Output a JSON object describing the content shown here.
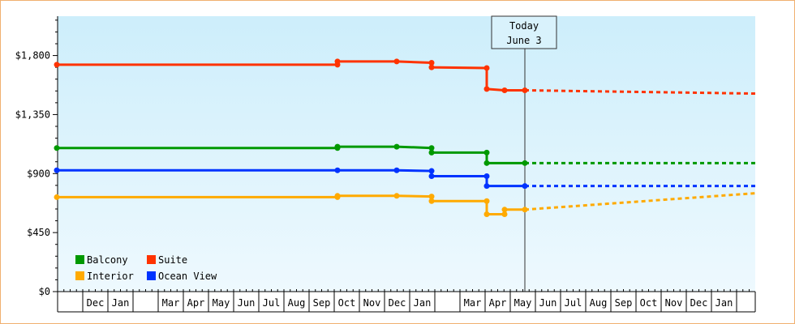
{
  "chart_data": {
    "type": "line",
    "title": "",
    "xlabel": "",
    "ylabel": "",
    "y_ticks": [
      "$0",
      "$450",
      "$900",
      "$1,350",
      "$1,800"
    ],
    "ylim": [
      0,
      2100
    ],
    "x_month_labels": [
      "",
      "Dec",
      "Jan",
      "",
      "Mar",
      "Apr",
      "May",
      "Jun",
      "Jul",
      "Aug",
      "Sep",
      "Oct",
      "Nov",
      "Dec",
      "Jan",
      "",
      "Mar",
      "Apr",
      "May",
      "Jun",
      "Jul",
      "Aug",
      "Sep",
      "Oct",
      "Nov",
      "Dec",
      "Jan",
      ""
    ],
    "today": {
      "line1": "Today",
      "line2": "June 3"
    },
    "legend": {
      "placement": "bottom-left"
    },
    "series": [
      {
        "name": "Suite",
        "color": "#ff3300",
        "points": [
          [
            "Nov",
            1730
          ],
          [
            "Oct",
            1730
          ],
          [
            "Oct",
            1755
          ],
          [
            "Dec",
            1755
          ],
          [
            "Jan",
            1745
          ],
          [
            "Jan",
            1710
          ],
          [
            "Apr",
            1705
          ],
          [
            "Apr",
            1545
          ],
          [
            "May",
            1535
          ],
          [
            "Jun 3",
            1535
          ]
        ],
        "forecast": [
          [
            "Jun 3",
            1535
          ],
          [
            "Jan",
            1510
          ]
        ]
      },
      {
        "name": "Balcony",
        "color": "#009900",
        "points": [
          [
            "Nov",
            1095
          ],
          [
            "Oct",
            1095
          ],
          [
            "Oct",
            1105
          ],
          [
            "Dec",
            1105
          ],
          [
            "Jan",
            1095
          ],
          [
            "Jan",
            1060
          ],
          [
            "Apr",
            1060
          ],
          [
            "Apr",
            980
          ],
          [
            "Jun 3",
            980
          ]
        ],
        "forecast": [
          [
            "Jun 3",
            980
          ],
          [
            "Jan",
            980
          ]
        ]
      },
      {
        "name": "Ocean View",
        "color": "#0033ff",
        "points": [
          [
            "Nov",
            925
          ],
          [
            "Oct",
            925
          ],
          [
            "Dec",
            925
          ],
          [
            "Jan",
            920
          ],
          [
            "Jan",
            880
          ],
          [
            "Apr",
            880
          ],
          [
            "Apr",
            805
          ],
          [
            "Jun 3",
            805
          ]
        ],
        "forecast": [
          [
            "Jun 3",
            805
          ],
          [
            "Jan",
            805
          ]
        ]
      },
      {
        "name": "Interior",
        "color": "#ffaa00",
        "points": [
          [
            "Nov",
            720
          ],
          [
            "Oct",
            720
          ],
          [
            "Oct",
            730
          ],
          [
            "Dec",
            730
          ],
          [
            "Jan",
            725
          ],
          [
            "Jan",
            690
          ],
          [
            "Apr",
            690
          ],
          [
            "Apr",
            590
          ],
          [
            "May",
            590
          ],
          [
            "May",
            625
          ],
          [
            "Jun 3",
            625
          ]
        ],
        "forecast": [
          [
            "Jun 3",
            625
          ],
          [
            "Jan",
            750
          ]
        ]
      }
    ]
  }
}
